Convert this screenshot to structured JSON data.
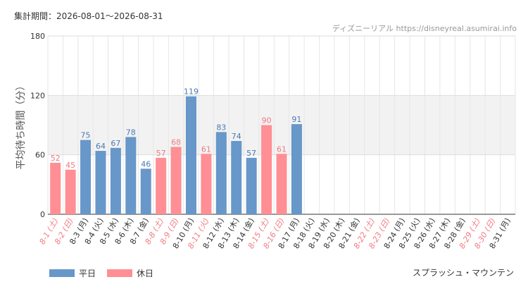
{
  "header": {
    "period": "集計期間：2026-08-01～2026-08-31",
    "source": "ディズニーリアル https://disneyreal.asumirai.info"
  },
  "legend": {
    "weekday": "平日",
    "holiday": "休日"
  },
  "footer": {
    "attraction": "スプラッシュ・マウンテン"
  },
  "colors": {
    "weekday": "#6897c9",
    "holiday": "#ff8f94",
    "weekday_label": "#4a7ab0",
    "holiday_label": "#f07a80",
    "band": "#f2f2f2",
    "grid": "#e6e6e6",
    "axis": "#333333"
  },
  "chart_data": {
    "type": "bar",
    "ylabel": "平均待ち時間（分）",
    "ylim": [
      0,
      180
    ],
    "yticks": [
      0,
      60,
      120,
      180
    ],
    "band": [
      60,
      120
    ],
    "grid": true,
    "categories": [
      "8-1 (土)",
      "8-2 (日)",
      "8-3 (月)",
      "8-4 (火)",
      "8-5 (水)",
      "8-6 (木)",
      "8-7 (金)",
      "8-8 (土)",
      "8-9 (日)",
      "8-10 (月)",
      "8-11 (火)",
      "8-12 (水)",
      "8-13 (木)",
      "8-14 (金)",
      "8-15 (土)",
      "8-16 (日)",
      "8-17 (月)",
      "8-18 (火)",
      "8-19 (水)",
      "8-20 (木)",
      "8-21 (金)",
      "8-22 (土)",
      "8-23 (日)",
      "8-24 (月)",
      "8-25 (火)",
      "8-26 (水)",
      "8-27 (木)",
      "8-28 (金)",
      "8-29 (土)",
      "8-30 (日)",
      "8-31 (月)"
    ],
    "day_type": [
      "holiday",
      "holiday",
      "weekday",
      "weekday",
      "weekday",
      "weekday",
      "weekday",
      "holiday",
      "holiday",
      "weekday",
      "holiday",
      "weekday",
      "weekday",
      "weekday",
      "holiday",
      "holiday",
      "weekday",
      "weekday",
      "weekday",
      "weekday",
      "weekday",
      "holiday",
      "holiday",
      "weekday",
      "weekday",
      "weekday",
      "weekday",
      "weekday",
      "holiday",
      "holiday",
      "weekday"
    ],
    "values": [
      52,
      45,
      75,
      64,
      67,
      78,
      46,
      57,
      68,
      119,
      61,
      83,
      74,
      57,
      90,
      61,
      91,
      null,
      null,
      null,
      null,
      null,
      null,
      null,
      null,
      null,
      null,
      null,
      null,
      null,
      null
    ]
  }
}
